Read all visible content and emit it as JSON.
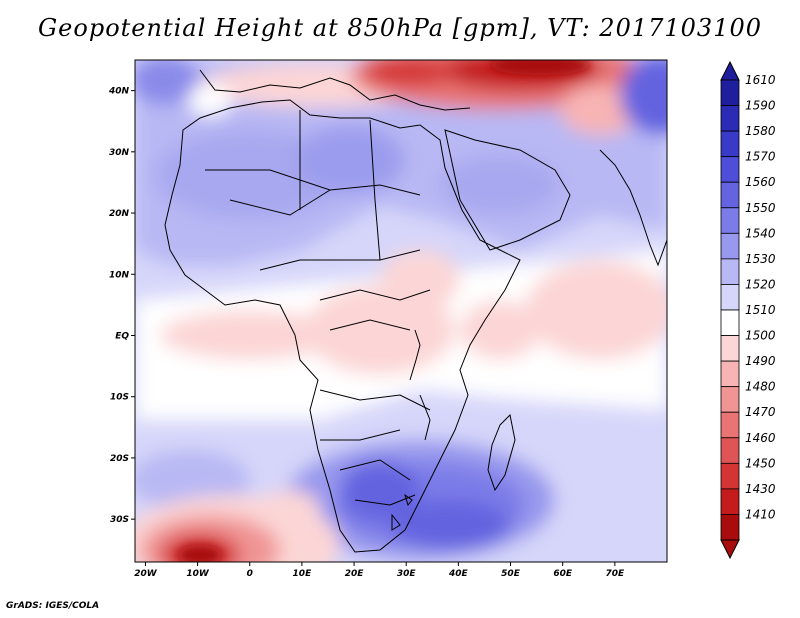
{
  "title": "Geopotential Height at 850hPa [gpm], VT: 2017103100",
  "credit": "GrADS: IGES/COLA",
  "map": {
    "lat_labels": [
      "40N",
      "30N",
      "20N",
      "10N",
      "EQ",
      "10S",
      "20S",
      "30S"
    ],
    "lon_labels": [
      "20W",
      "10W",
      "0",
      "10E",
      "20E",
      "30E",
      "40E",
      "50E",
      "60E",
      "70E"
    ],
    "lon_range": [
      -22,
      80
    ],
    "lat_range": [
      -37,
      45
    ]
  },
  "colorbar": {
    "levels": [
      "1610",
      "1590",
      "1580",
      "1570",
      "1560",
      "1550",
      "1540",
      "1530",
      "1520",
      "1510",
      "1500",
      "1490",
      "1480",
      "1470",
      "1460",
      "1450",
      "1430",
      "1410"
    ],
    "colors": [
      "#1f1f9e",
      "#2b2bb5",
      "#3a3ac8",
      "#4e4ed8",
      "#6464e0",
      "#7c7ce8",
      "#9898ee",
      "#b8b8f4",
      "#d6d6fa",
      "#ffffff",
      "#fcd6d6",
      "#f8b4b4",
      "#f09494",
      "#e87474",
      "#df5454",
      "#d43434",
      "#c41c1c",
      "#a80c0c"
    ]
  }
}
